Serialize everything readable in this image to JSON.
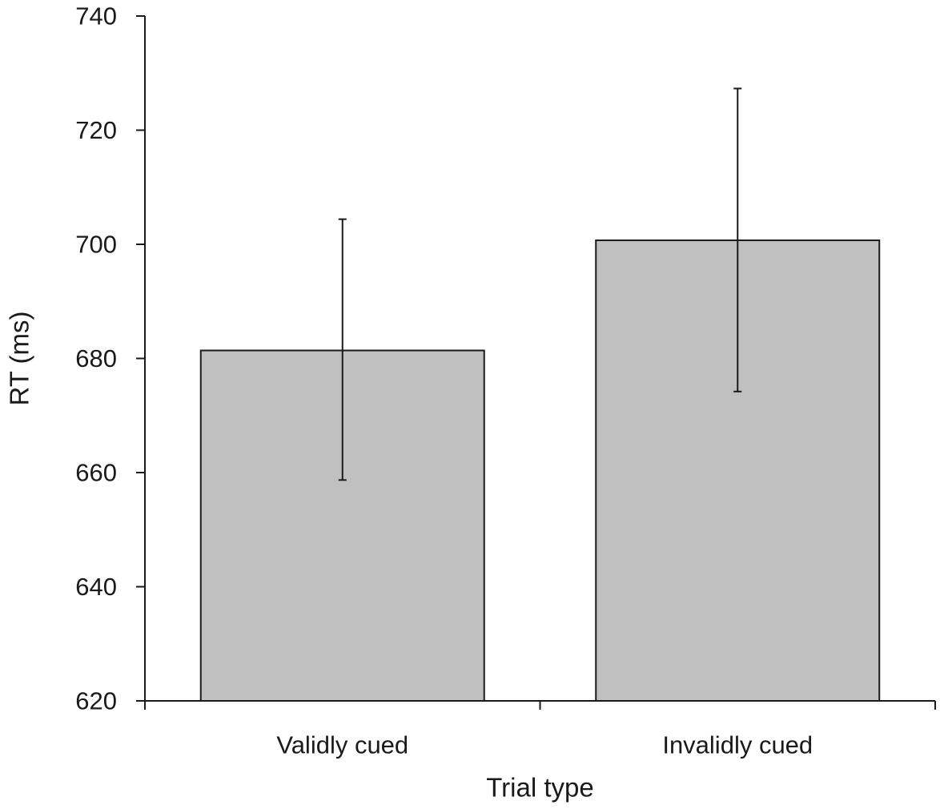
{
  "chart_data": {
    "type": "bar",
    "title": "",
    "xlabel": "Trial type",
    "ylabel": "RT (ms)",
    "categories": [
      "Validly cued",
      "Invalidly cued"
    ],
    "values": [
      681.4,
      700.7
    ],
    "error_bars": [
      {
        "low": 658.7,
        "high": 704.4
      },
      {
        "low": 674.2,
        "high": 727.3
      }
    ],
    "ylim": [
      620,
      740
    ],
    "yticks": [
      "620",
      "640",
      "660",
      "680",
      "700",
      "720",
      "740"
    ],
    "grid": false,
    "legend": "none",
    "bar_color": "#c0c0c0",
    "edge_color": "#1a1a1a"
  }
}
